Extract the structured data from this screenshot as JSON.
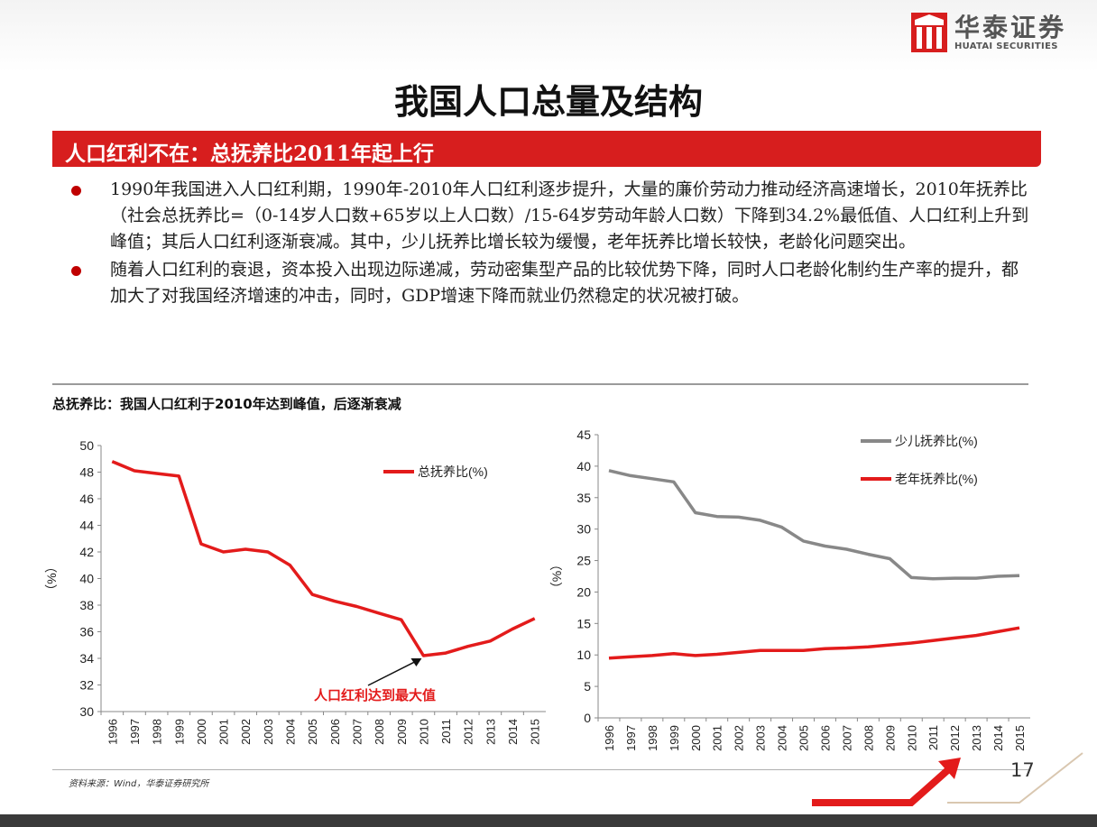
{
  "brand": {
    "name_cn": "华泰证券",
    "name_en": "HUATAI SECURITIES",
    "color": "#d71e1e"
  },
  "page": {
    "title": "我国人口总量及结构",
    "banner": "人口红利不在：总抚养比2011年起上行",
    "bullets": [
      "1990年我国进入人口红利期，1990年-2010年人口红利逐步提升，大量的廉价劳动力推动经济高速增长，2010年抚养比（社会总抚养比=（0-14岁人口数+65岁以上人口数）/15-64岁劳动年龄人口数）下降到34.2%最低值、人口红利上升到峰值；其后人口红利逐渐衰减。其中，少儿抚养比增长较为缓慢，老年抚养比增长较快，老龄化问题突出。",
      "随着人口红利的衰退，资本投入出现边际递减，劳动密集型产品的比较优势下降，同时人口老龄化制约生产率的提升，都加大了对我国经济增速的冲击，同时，GDP增速下降而就业仍然稳定的状况被打破。"
    ],
    "chart_heading": "总抚养比：我国人口红利于2010年达到峰值，后逐渐衰减",
    "source": "资料来源：Wind，华泰证券研究所",
    "page_number": "17"
  },
  "chart_data": [
    {
      "type": "line",
      "categories": [
        "1996",
        "1997",
        "1998",
        "1999",
        "2000",
        "2001",
        "2002",
        "2003",
        "2004",
        "2005",
        "2006",
        "2007",
        "2008",
        "2009",
        "2010",
        "2011",
        "2012",
        "2013",
        "2014",
        "2015"
      ],
      "series": [
        {
          "name": "总抚养比(%)",
          "color": "#e31b1b",
          "values": [
            48.8,
            48.1,
            47.9,
            47.7,
            42.6,
            42.0,
            42.2,
            42.0,
            41.0,
            38.8,
            38.3,
            37.9,
            37.4,
            36.9,
            34.2,
            34.4,
            34.9,
            35.3,
            36.2,
            37.0
          ]
        }
      ],
      "ylabel": "（%）",
      "ylim": [
        30,
        50
      ],
      "yticks": [
        30,
        32,
        34,
        36,
        38,
        40,
        42,
        44,
        46,
        48,
        50
      ],
      "annotation": {
        "text": "人口红利达到最大值",
        "target_category": "2010",
        "color": "#e31b1b"
      },
      "legend_position": "top-right"
    },
    {
      "type": "line",
      "categories": [
        "1996",
        "1997",
        "1998",
        "1999",
        "2000",
        "2001",
        "2002",
        "2003",
        "2004",
        "2005",
        "2006",
        "2007",
        "2008",
        "2009",
        "2010",
        "2011",
        "2012",
        "2013",
        "2014",
        "2015"
      ],
      "series": [
        {
          "name": "少儿抚养比(%)",
          "color": "#888888",
          "values": [
            39.3,
            38.5,
            38.0,
            37.5,
            32.6,
            32.0,
            31.9,
            31.4,
            30.3,
            28.1,
            27.3,
            26.8,
            26.0,
            25.3,
            22.3,
            22.1,
            22.2,
            22.2,
            22.5,
            22.6
          ]
        },
        {
          "name": "老年抚养比(%)",
          "color": "#e31b1b",
          "values": [
            9.5,
            9.7,
            9.9,
            10.2,
            9.9,
            10.1,
            10.4,
            10.7,
            10.7,
            10.7,
            11.0,
            11.1,
            11.3,
            11.6,
            11.9,
            12.3,
            12.7,
            13.1,
            13.7,
            14.3
          ]
        }
      ],
      "ylabel": "（%）",
      "ylim": [
        0,
        45
      ],
      "yticks": [
        0,
        5,
        10,
        15,
        20,
        25,
        30,
        35,
        40,
        45
      ],
      "legend_position": "top-right"
    }
  ]
}
